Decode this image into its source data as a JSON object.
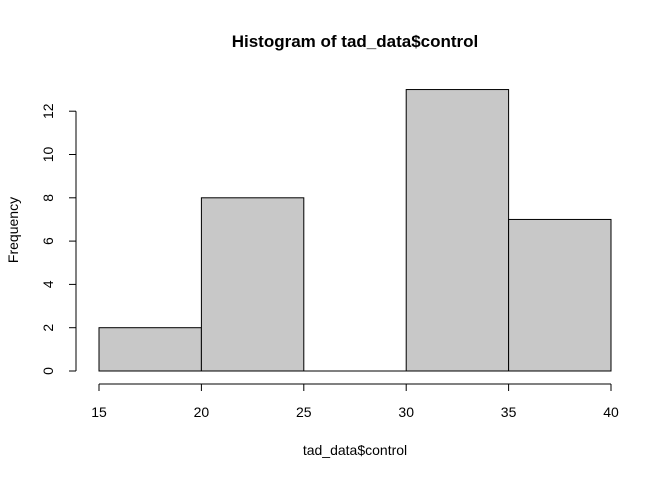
{
  "chart_data": {
    "type": "bar",
    "title": "Histogram of tad_data$control",
    "xlabel": "tad_data$control",
    "ylabel": "Frequency",
    "bins": [
      {
        "start": 15,
        "end": 20,
        "value": 2
      },
      {
        "start": 20,
        "end": 25,
        "value": 8
      },
      {
        "start": 25,
        "end": 30,
        "value": 0
      },
      {
        "start": 30,
        "end": 35,
        "value": 13
      },
      {
        "start": 35,
        "end": 40,
        "value": 7
      }
    ],
    "xlim": [
      15,
      40
    ],
    "ylim": [
      0,
      13
    ],
    "x_ticks": [
      15,
      20,
      25,
      30,
      35,
      40
    ],
    "y_ticks": [
      0,
      2,
      4,
      6,
      8,
      10,
      12
    ],
    "bar_color": "#c8c8c8",
    "border_color": "#000000",
    "grid": false,
    "legend": "none"
  }
}
